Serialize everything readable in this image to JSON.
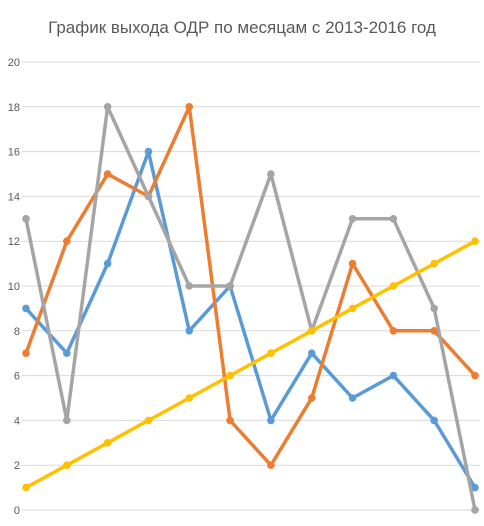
{
  "chart_data": {
    "type": "line",
    "title": "График выхода ОДР по месяцам с 2013-2016 год",
    "xlabel": "",
    "ylabel": "",
    "ylim": [
      0,
      20
    ],
    "yticks": [
      0,
      2,
      4,
      6,
      8,
      10,
      12,
      14,
      16,
      18,
      20
    ],
    "grid": true,
    "legend": "none",
    "x": [
      1,
      2,
      3,
      4,
      5,
      6,
      7,
      8,
      9,
      10,
      11,
      12
    ],
    "series": [
      {
        "color": "#5B9BD5",
        "values": [
          9,
          7,
          11,
          16,
          8,
          10,
          4,
          7,
          5,
          6,
          4,
          1
        ]
      },
      {
        "color": "#ED7D31",
        "values": [
          7,
          12,
          15,
          14,
          18,
          4,
          2,
          5,
          11,
          8,
          8,
          6
        ]
      },
      {
        "color": "#A5A5A5",
        "values": [
          13,
          4,
          18,
          14,
          10,
          10,
          15,
          8,
          13,
          13,
          9,
          0
        ]
      },
      {
        "color": "#FFC000",
        "values": [
          1,
          2,
          3,
          4,
          5,
          6,
          7,
          8,
          9,
          10,
          11,
          12
        ]
      }
    ]
  }
}
